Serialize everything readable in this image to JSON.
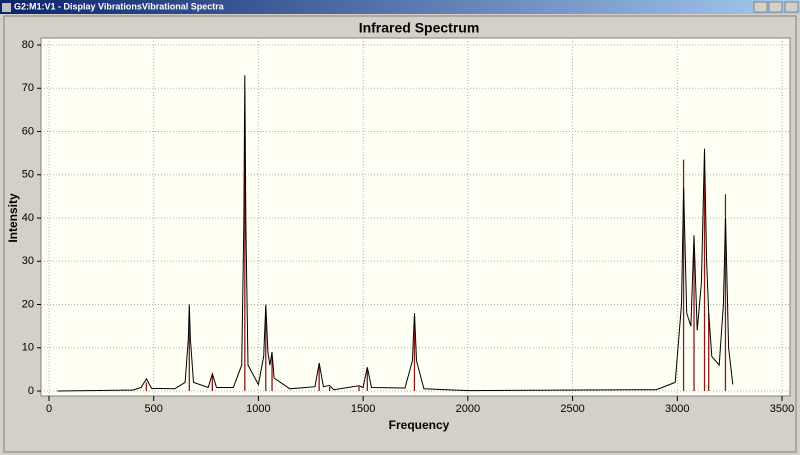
{
  "window": {
    "title": "G2:M1:V1 - Display VibrationsVibrational Spectra"
  },
  "chart_data": {
    "type": "line",
    "title": "Infrared Spectrum",
    "x_label": "Frequency",
    "y_label": "Intensity",
    "xlim": [
      0,
      3500
    ],
    "ylim": [
      0,
      80
    ],
    "xticks": [
      0,
      500,
      1000,
      1500,
      2000,
      2500,
      3000,
      3500
    ],
    "yticks": [
      0,
      10,
      20,
      30,
      40,
      50,
      60,
      70,
      80
    ],
    "grid": true,
    "series": [
      {
        "type": "stick",
        "color": "#8b1a1a",
        "x": [
          465,
          670,
          780,
          935,
          1035,
          1065,
          1290,
          1340,
          1480,
          1520,
          1745,
          3030,
          3080,
          3130,
          3150,
          3230
        ],
        "values": [
          2,
          18,
          3.5,
          62,
          18,
          8,
          6,
          1,
          1,
          5,
          17,
          53.5,
          32,
          50,
          18,
          45.5
        ]
      },
      {
        "type": "line",
        "color": "#000000",
        "x": [
          40,
          400,
          440,
          465,
          490,
          600,
          650,
          665,
          670,
          675,
          690,
          760,
          780,
          800,
          880,
          920,
          930,
          935,
          940,
          950,
          1000,
          1025,
          1035,
          1045,
          1055,
          1065,
          1075,
          1150,
          1270,
          1290,
          1310,
          1340,
          1360,
          1480,
          1500,
          1520,
          1540,
          1700,
          1735,
          1745,
          1755,
          1790,
          2000,
          2900,
          2990,
          3020,
          3030,
          3045,
          3065,
          3080,
          3095,
          3115,
          3130,
          3140,
          3150,
          3165,
          3200,
          3220,
          3230,
          3245,
          3265
        ],
        "values": [
          0,
          0.2,
          0.8,
          2.8,
          0.6,
          0.5,
          2,
          12,
          20,
          12,
          2,
          0.8,
          4,
          0.8,
          0.8,
          6,
          38,
          73,
          38,
          6,
          1.5,
          8,
          20,
          9,
          6,
          9,
          3,
          0.5,
          1,
          6.5,
          1,
          1.3,
          0.3,
          1.2,
          0.8,
          5.5,
          0.8,
          0.7,
          7,
          18,
          7,
          0.5,
          0.1,
          0.3,
          2,
          20,
          47,
          18,
          15,
          36,
          14,
          25,
          56,
          30,
          18,
          8,
          6,
          20,
          40,
          10,
          1.5
        ]
      }
    ]
  }
}
